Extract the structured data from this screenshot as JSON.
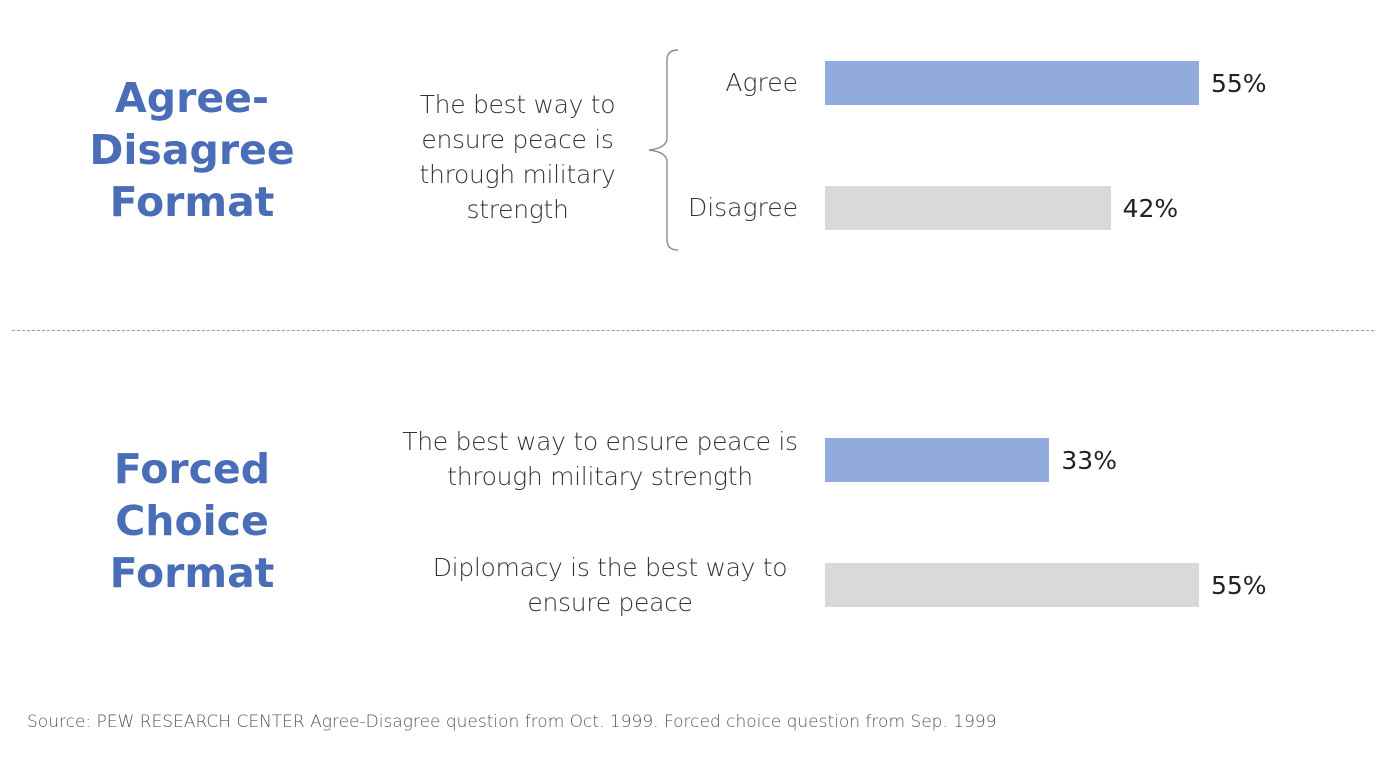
{
  "chart_data": [
    {
      "type": "bar",
      "title": [
        "Agree-",
        "Disagree",
        "Format"
      ],
      "question": [
        "The best way to",
        "ensure peace is",
        "through military",
        "strength"
      ],
      "categories": [
        "Agree",
        "Disagree"
      ],
      "values": [
        55,
        42
      ],
      "value_labels": [
        "55%",
        "42%"
      ],
      "colors": [
        "#91abdc",
        "#d9d9d9"
      ],
      "xlim": [
        0,
        55
      ]
    },
    {
      "type": "bar",
      "title": [
        "Forced",
        "Choice",
        "Format"
      ],
      "categories": [
        [
          "The best way to ensure peace is",
          "through military strength"
        ],
        [
          "Diplomacy is the best way to",
          "ensure peace"
        ]
      ],
      "values": [
        33,
        55
      ],
      "value_labels": [
        "33%",
        "55%"
      ],
      "colors": [
        "#91abdc",
        "#d9d9d9"
      ],
      "xlim": [
        0,
        55
      ]
    }
  ],
  "source": "Source: PEW RESEARCH CENTER Agree-Disagree question from Oct. 1999. Forced choice question from Sep. 1999",
  "colors": {
    "title": "#4a6db8",
    "bar_primary": "#91abdc",
    "bar_secondary": "#d9d9d9"
  }
}
